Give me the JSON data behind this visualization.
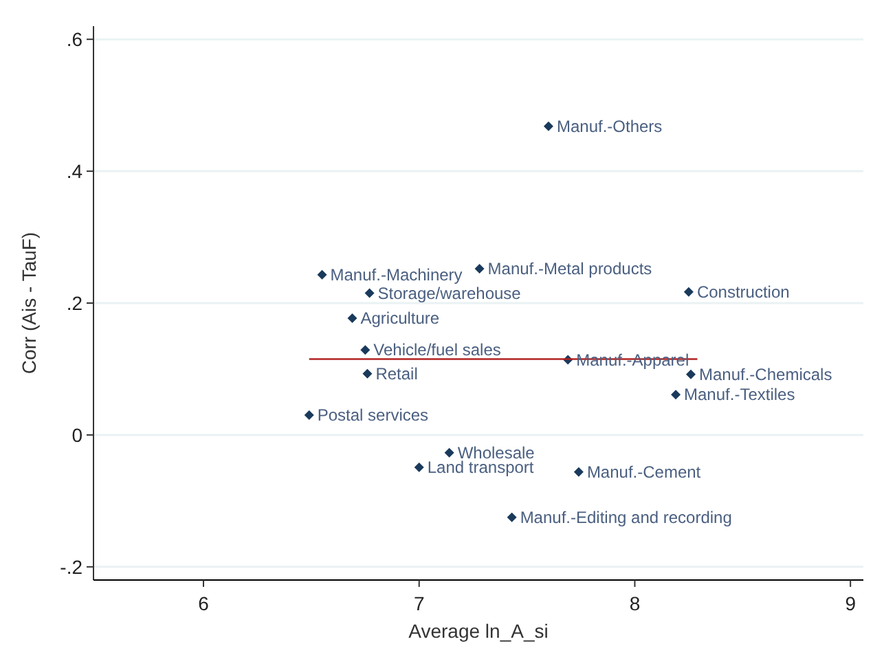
{
  "chart_data": {
    "type": "scatter",
    "xlabel": "Average ln_A_si",
    "ylabel": "Corr (Ais - TauF)",
    "xlim": [
      5.49,
      9.06
    ],
    "ylim": [
      -0.22,
      0.62
    ],
    "xticks": [
      6,
      7,
      8,
      9
    ],
    "yticks": [
      {
        "value": -0.2,
        "label": "-.2"
      },
      0,
      {
        "value": 0.2,
        "label": ".2"
      },
      {
        "value": 0.4,
        "label": ".4"
      },
      {
        "value": 0.6,
        "label": ".6"
      }
    ],
    "grid": "y",
    "marker": "diamond",
    "series": [
      {
        "color": "#1a3a5c",
        "x": [
          7.6,
          6.55,
          7.28,
          6.77,
          8.25,
          6.69,
          6.75,
          6.76,
          7.69,
          8.26,
          8.19,
          6.49,
          7.14,
          7.0,
          7.74,
          7.43
        ],
        "values": [
          0.468,
          0.243,
          0.252,
          0.215,
          0.217,
          0.177,
          0.129,
          0.093,
          0.114,
          0.092,
          0.061,
          0.03,
          -0.027,
          -0.049,
          -0.056,
          -0.125
        ]
      },
      {
        "type": "line",
        "color": "#b22222",
        "marker": "none",
        "x": [
          6.49,
          8.29
        ],
        "values": [
          0.115,
          0.115
        ]
      }
    ],
    "annotations": [
      {
        "text": "Manuf.-Others",
        "x": 7.6,
        "y": 0.468
      },
      {
        "text": "Manuf.-Machinery",
        "x": 6.55,
        "y": 0.243
      },
      {
        "text": "Manuf.-Metal products",
        "x": 7.28,
        "y": 0.252
      },
      {
        "text": "Storage/warehouse",
        "x": 6.77,
        "y": 0.215
      },
      {
        "text": "Construction",
        "x": 8.25,
        "y": 0.217
      },
      {
        "text": "Agriculture",
        "x": 6.69,
        "y": 0.177
      },
      {
        "text": "Vehicle/fuel sales",
        "x": 6.75,
        "y": 0.129
      },
      {
        "text": "Retail",
        "x": 6.76,
        "y": 0.093
      },
      {
        "text": "Manuf.-Apparel",
        "x": 7.69,
        "y": 0.114
      },
      {
        "text": "Manuf.-Chemicals",
        "x": 8.26,
        "y": 0.092
      },
      {
        "text": "Manuf.-Textiles",
        "x": 8.19,
        "y": 0.061
      },
      {
        "text": "Postal services",
        "x": 6.49,
        "y": 0.03
      },
      {
        "text": "Wholesale",
        "x": 7.14,
        "y": -0.027
      },
      {
        "text": "Land transport",
        "x": 7.0,
        "y": -0.049
      },
      {
        "text": "Manuf.-Cement",
        "x": 7.74,
        "y": -0.056
      },
      {
        "text": "Manuf.-Editing and recording",
        "x": 7.43,
        "y": -0.125
      }
    ]
  }
}
